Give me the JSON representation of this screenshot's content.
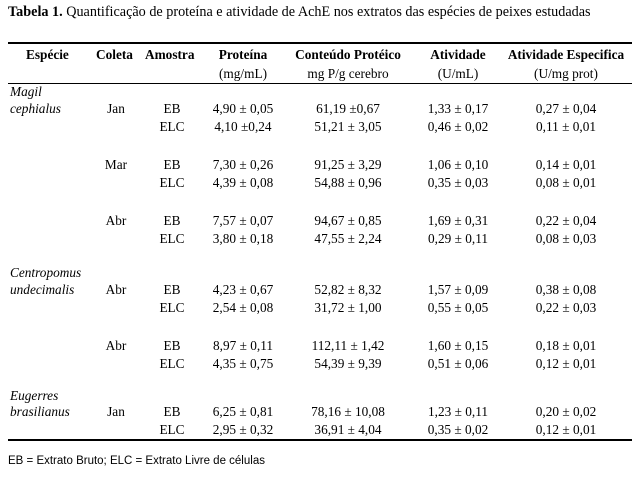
{
  "caption": {
    "label": "Tabela 1.",
    "text": " Quantificação de proteína e atividade de AchE nos extratos das espécies de peixes estudadas"
  },
  "headers": {
    "especie": "Espécie",
    "coleta": "Coleta",
    "amostra": "Amostra",
    "proteina": "Proteína",
    "proteina_unit": "(mg/mL)",
    "conteudo": "Conteúdo Protéico",
    "conteudo_unit": "mg P/g cerebro",
    "atividade": "Atividade",
    "atividade_unit": "(U/mL)",
    "especifica": "Atividade Especifica",
    "especifica_unit": "(U/mg prot)"
  },
  "species": [
    {
      "line1": "Magil",
      "line2": "cephialus"
    },
    {
      "line1": "Centropomus",
      "line2": "undecimalis"
    },
    {
      "line1": "Eugerres",
      "line2": "brasilianus"
    }
  ],
  "rows": [
    {
      "coleta": "Jan",
      "amostra": "EB",
      "proteina": "4,90 ± 0,05",
      "conteudo": "61,19 ±0,67",
      "atividade": "1,33 ± 0,17",
      "especifica": "0,27 ± 0,04"
    },
    {
      "coleta": "",
      "amostra": "ELC",
      "proteina": "4,10 ±0,24",
      "conteudo": "51,21 ± 3,05",
      "atividade": "0,46 ± 0,02",
      "especifica": "0,11 ± 0,01"
    },
    {
      "coleta": "Mar",
      "amostra": "EB",
      "proteina": "7,30 ± 0,26",
      "conteudo": "91,25 ± 3,29",
      "atividade": "1,06 ± 0,10",
      "especifica": "0,14 ± 0,01"
    },
    {
      "coleta": "",
      "amostra": "ELC",
      "proteina": "4,39 ± 0,08",
      "conteudo": "54,88 ± 0,96",
      "atividade": "0,35 ± 0,03",
      "especifica": "0,08 ± 0,01"
    },
    {
      "coleta": "Abr",
      "amostra": "EB",
      "proteina": "7,57 ± 0,07",
      "conteudo": "94,67 ± 0,85",
      "atividade": "1,69 ± 0,31",
      "especifica": "0,22 ± 0,04"
    },
    {
      "coleta": "",
      "amostra": "ELC",
      "proteina": "3,80 ± 0,18",
      "conteudo": "47,55 ± 2,24",
      "atividade": "0,29 ± 0,11",
      "especifica": "0,08 ± 0,03"
    },
    {
      "coleta": "Abr",
      "amostra": "EB",
      "proteina": "4,23 ± 0,67",
      "conteudo": "52,82 ± 8,32",
      "atividade": "1,57 ± 0,09",
      "especifica": "0,38 ± 0,08"
    },
    {
      "coleta": "",
      "amostra": "ELC",
      "proteina": "2,54 ± 0,08",
      "conteudo": "31,72 ± 1,00",
      "atividade": "0,55 ± 0,05",
      "especifica": "0,22 ± 0,03"
    },
    {
      "coleta": "Abr",
      "amostra": "EB",
      "proteina": "8,97 ± 0,11",
      "conteudo": "112,11 ± 1,42",
      "atividade": "1,60 ± 0,15",
      "especifica": "0,18 ± 0,01"
    },
    {
      "coleta": "",
      "amostra": "ELC",
      "proteina": "4,35 ± 0,75",
      "conteudo": "54,39 ± 9,39",
      "atividade": "0,51 ± 0,06",
      "especifica": "0,12 ± 0,01"
    },
    {
      "coleta": "Jan",
      "amostra": "EB",
      "proteina": "6,25 ± 0,81",
      "conteudo": "78,16 ± 10,08",
      "atividade": "1,23 ± 0,11",
      "especifica": "0,20 ± 0,02"
    },
    {
      "coleta": "",
      "amostra": "ELC",
      "proteina": "2,95 ± 0,32",
      "conteudo": "36,91 ± 4,04",
      "atividade": "0,35 ± 0,02",
      "especifica": "0,12 ± 0,01"
    }
  ],
  "footer": "EB = Extrato Bruto; ELC = Extrato Livre de células"
}
